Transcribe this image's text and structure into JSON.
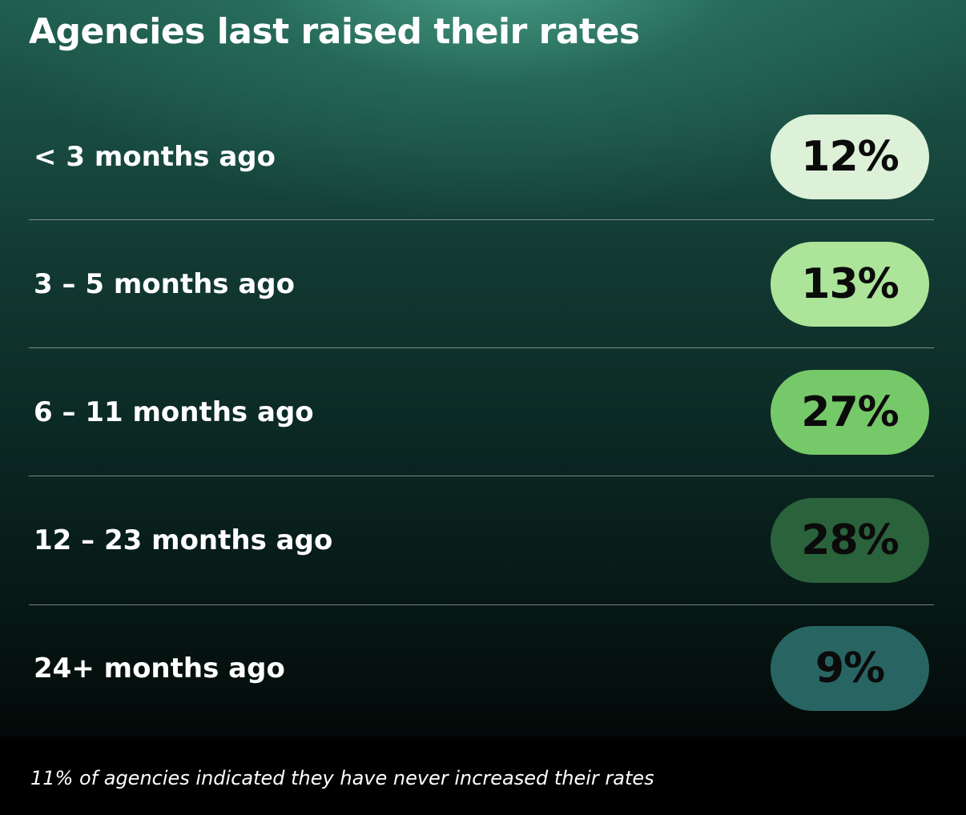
{
  "title": "Agencies last raised their rates",
  "footnote": "11% of agencies indicated they have never increased their rates",
  "colors": {
    "pill_1": "#dcf1d8",
    "pill_2": "#ace59a",
    "pill_3": "#76c968",
    "pill_4": "#2a623c",
    "pill_5": "#286562"
  },
  "chart_data": {
    "type": "table",
    "title": "Agencies last raised their rates",
    "categories": [
      "< 3 months ago",
      "3 – 5 months ago",
      "6 – 11 months ago",
      "12 – 23 months ago",
      "24+ months ago"
    ],
    "values": [
      12,
      13,
      27,
      28,
      9
    ],
    "value_labels": [
      "12%",
      "13%",
      "27%",
      "28%",
      "9%"
    ],
    "unit": "%"
  }
}
